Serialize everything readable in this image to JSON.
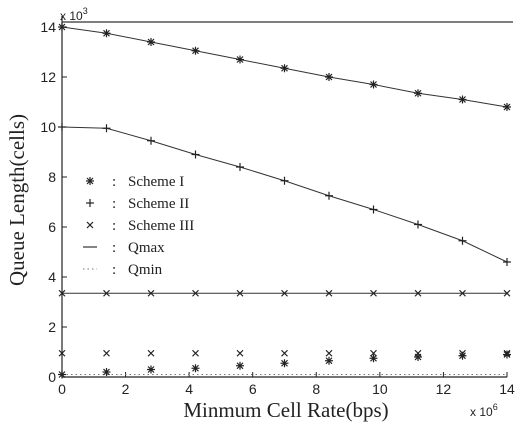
{
  "chart_data": {
    "type": "line",
    "xlabel": "Minmum Cell Rate(bps)",
    "ylabel": "Queue Length(cells)",
    "x_multiplier": "x 10",
    "x_multiplier_exp": "6",
    "y_multiplier": "x 10",
    "y_multiplier_exp": "3",
    "xlim": [
      0,
      14
    ],
    "ylim": [
      0,
      14.2
    ],
    "x_ticks": [
      0,
      2,
      4,
      6,
      8,
      10,
      12,
      14
    ],
    "y_ticks": [
      0,
      2,
      4,
      6,
      8,
      10,
      12,
      14
    ],
    "x": [
      0,
      1.4,
      2.8,
      4.2,
      5.6,
      7.0,
      8.4,
      9.8,
      11.2,
      12.6,
      14.0
    ],
    "grid": false,
    "legend_placement": "center-left",
    "legend": [
      {
        "symbol": "*",
        "label": "Scheme I"
      },
      {
        "symbol": "+",
        "label": "Scheme II"
      },
      {
        "symbol": "x",
        "label": "Scheme III"
      },
      {
        "symbol": "—",
        "label": "Qmax"
      },
      {
        "symbol": "·",
        "label": "Qmin"
      }
    ],
    "series": [
      {
        "name": "Scheme I",
        "marker": "star",
        "line": true,
        "values": [
          14.0,
          13.75,
          13.4,
          13.05,
          12.7,
          12.35,
          12.0,
          11.7,
          11.35,
          11.1,
          10.8
        ]
      },
      {
        "name": "Scheme II",
        "marker": "plus",
        "line": true,
        "values": [
          10.0,
          9.95,
          9.45,
          8.9,
          8.4,
          7.85,
          7.25,
          6.7,
          6.1,
          5.45,
          4.6
        ]
      },
      {
        "name": "Scheme III",
        "marker": "cross",
        "line": true,
        "values": [
          3.35,
          3.35,
          3.35,
          3.35,
          3.35,
          3.35,
          3.35,
          3.35,
          3.35,
          3.35,
          3.35
        ]
      },
      {
        "name": "Scheme I",
        "marker": "star",
        "line": false,
        "values": [
          0.1,
          0.2,
          0.3,
          0.35,
          0.45,
          0.55,
          0.65,
          0.75,
          0.8,
          0.85,
          0.9
        ]
      },
      {
        "name": "Scheme III",
        "marker": "cross",
        "line": false,
        "values": [
          0.95,
          0.95,
          0.95,
          0.95,
          0.95,
          0.95,
          0.95,
          0.95,
          0.95,
          0.95,
          0.95
        ]
      }
    ],
    "qmax": 14.2,
    "qmin": 0.1
  }
}
